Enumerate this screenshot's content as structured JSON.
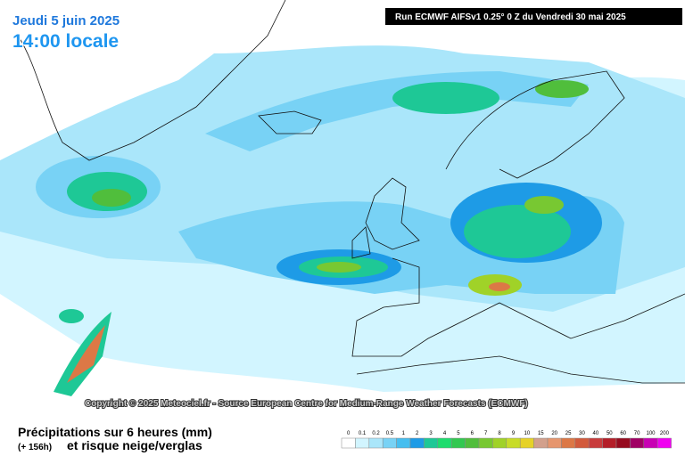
{
  "header": {
    "date": "Jeudi 5 juin 2025",
    "time": "14:00 locale",
    "run": "Run ECMWF AIFSv1 0.25° 0 Z du Vendredi 30 mai 2025"
  },
  "copyright": "Copyright © 2025 Meteociel.fr - Source European Centre for Medium-Range Weather Forecasts (ECMWF)",
  "footer": {
    "title": "Précipitations sur 6 heures (mm)",
    "lead": "(+ 156h)",
    "subtitle": "et risque neige/verglas"
  },
  "legend": {
    "items": [
      {
        "label": "0",
        "color": "#ffffff"
      },
      {
        "label": "0.1",
        "color": "#d2f5ff"
      },
      {
        "label": "0.2",
        "color": "#aae6fa"
      },
      {
        "label": "0.5",
        "color": "#78d2f5"
      },
      {
        "label": "1",
        "color": "#46beef"
      },
      {
        "label": "2",
        "color": "#1e9be6"
      },
      {
        "label": "3",
        "color": "#1ec896"
      },
      {
        "label": "4",
        "color": "#1edc6e"
      },
      {
        "label": "5",
        "color": "#32c850"
      },
      {
        "label": "6",
        "color": "#50be3c"
      },
      {
        "label": "7",
        "color": "#78c832"
      },
      {
        "label": "8",
        "color": "#a0d228"
      },
      {
        "label": "9",
        "color": "#c8dc28"
      },
      {
        "label": "10",
        "color": "#e6d228"
      },
      {
        "label": "15",
        "color": "#d2a08c"
      },
      {
        "label": "20",
        "color": "#e6966e"
      },
      {
        "label": "25",
        "color": "#dc7846"
      },
      {
        "label": "30",
        "color": "#d25a3c"
      },
      {
        "label": "40",
        "color": "#c83c3c"
      },
      {
        "label": "50",
        "color": "#b41e28"
      },
      {
        "label": "60",
        "color": "#960a1e"
      },
      {
        "label": "70",
        "color": "#a00064"
      },
      {
        "label": "100",
        "color": "#c800b4"
      },
      {
        "label": "200",
        "color": "#f000f0"
      }
    ]
  }
}
